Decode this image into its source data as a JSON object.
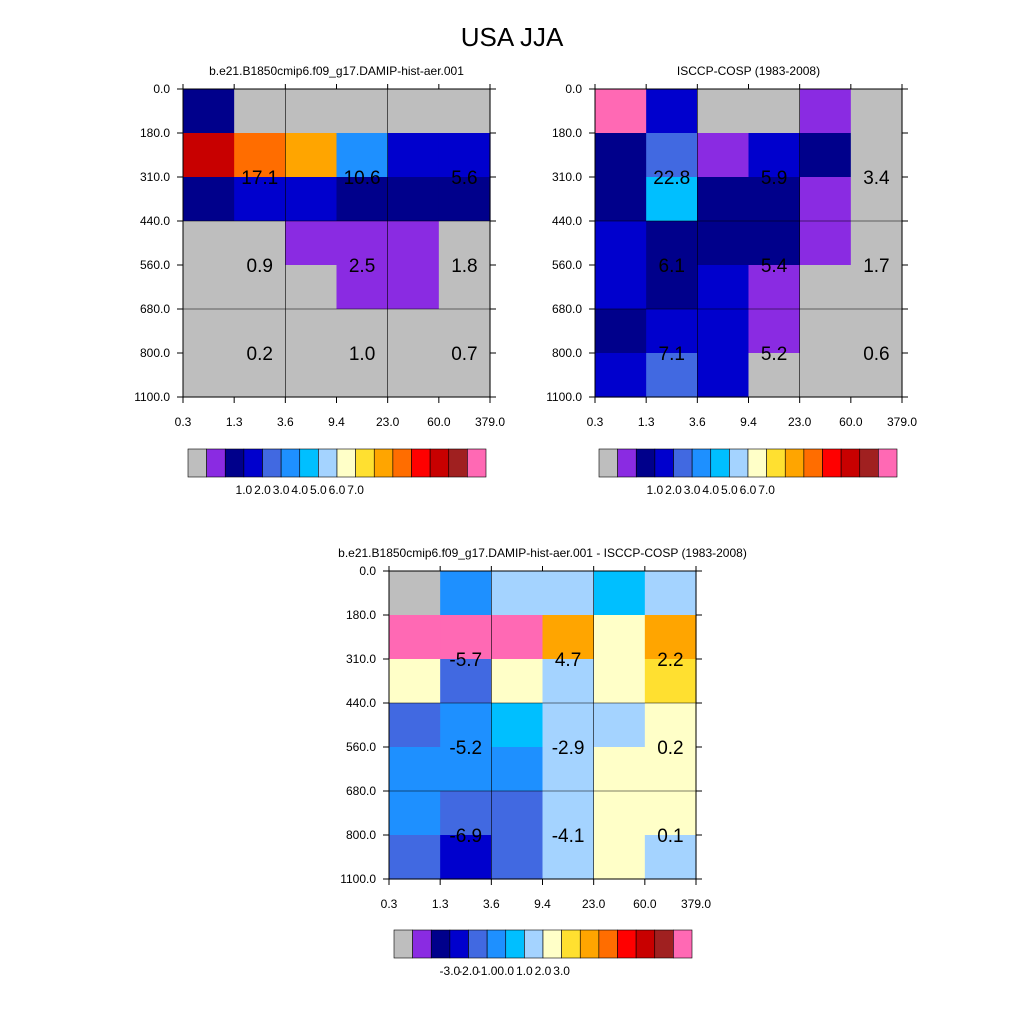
{
  "title": "USA JJA",
  "colors": {
    "missing": "#bebebe",
    "grid_line": "#000000",
    "palette": [
      "#8a2be2",
      "#00008b",
      "#0000cd",
      "#4169e1",
      "#1e90ff",
      "#00bfff",
      "#a4d3ff",
      "#ffffc8",
      "#ffe030",
      "#ffa500",
      "#ff6d00",
      "#ff0000",
      "#c80000",
      "#a02020",
      "#ff69b4"
    ]
  },
  "chart_data": [
    {
      "type": "heatmap",
      "title": "b.e21.B1850cmip6.f09_g17.DAMIP-hist-aer.001",
      "x_tick_labels": [
        "0.3",
        "1.3",
        "3.6",
        "9.4",
        "23.0",
        "60.0",
        "379.0"
      ],
      "y_tick_labels": [
        "0.0",
        "180.0",
        "310.0",
        "440.0",
        "560.0",
        "680.0",
        "800.0",
        "1100.0"
      ],
      "cell_colors": [
        [
          "#00008b",
          "#bebebe",
          "#bebebe",
          "#bebebe",
          "#bebebe",
          "#bebebe"
        ],
        [
          "#c80000",
          "#ff6d00",
          "#ffa500",
          "#1e90ff",
          "#0000cd",
          "#0000cd"
        ],
        [
          "#00008b",
          "#0000cd",
          "#0000cd",
          "#00008b",
          "#00008b",
          "#00008b"
        ],
        [
          "#bebebe",
          "#bebebe",
          "#8a2be2",
          "#8a2be2",
          "#8a2be2",
          "#bebebe"
        ],
        [
          "#bebebe",
          "#bebebe",
          "#bebebe",
          "#8a2be2",
          "#8a2be2",
          "#bebebe"
        ],
        [
          "#bebebe",
          "#bebebe",
          "#bebebe",
          "#bebebe",
          "#bebebe",
          "#bebebe"
        ],
        [
          "#bebebe",
          "#bebebe",
          "#bebebe",
          "#bebebe",
          "#bebebe",
          "#bebebe"
        ]
      ],
      "block_labels": [
        {
          "label": "17.1",
          "col": 1,
          "row": 1.5
        },
        {
          "label": "10.6",
          "col": 3,
          "row": 1.5
        },
        {
          "label": "5.6",
          "col": 5,
          "row": 1.5
        },
        {
          "label": "0.9",
          "col": 1,
          "row": 3.5
        },
        {
          "label": "2.5",
          "col": 3,
          "row": 3.5
        },
        {
          "label": "1.8",
          "col": 5,
          "row": 3.5
        },
        {
          "label": "0.2",
          "col": 1,
          "row": 5.5
        },
        {
          "label": "1.0",
          "col": 3,
          "row": 5.5
        },
        {
          "label": "0.7",
          "col": 5,
          "row": 5.5
        }
      ],
      "colorbar_labels": [
        "1.0",
        "2.0",
        "3.0",
        "4.0",
        "5.0",
        "6.0",
        "7.0"
      ]
    },
    {
      "type": "heatmap",
      "title": "ISCCP-COSP (1983-2008)",
      "x_tick_labels": [
        "0.3",
        "1.3",
        "3.6",
        "9.4",
        "23.0",
        "60.0",
        "379.0"
      ],
      "y_tick_labels": [
        "0.0",
        "180.0",
        "310.0",
        "440.0",
        "560.0",
        "680.0",
        "800.0",
        "1100.0"
      ],
      "cell_colors": [
        [
          "#ff69b4",
          "#0000cd",
          "#bebebe",
          "#bebebe",
          "#8a2be2",
          "#bebebe"
        ],
        [
          "#00008b",
          "#4169e1",
          "#8a2be2",
          "#0000cd",
          "#00008b",
          "#bebebe"
        ],
        [
          "#00008b",
          "#00bfff",
          "#00008b",
          "#00008b",
          "#8a2be2",
          "#bebebe"
        ],
        [
          "#0000cd",
          "#00008b",
          "#00008b",
          "#00008b",
          "#8a2be2",
          "#bebebe"
        ],
        [
          "#0000cd",
          "#00008b",
          "#0000cd",
          "#8a2be2",
          "#bebebe",
          "#bebebe"
        ],
        [
          "#00008b",
          "#0000cd",
          "#0000cd",
          "#8a2be2",
          "#bebebe",
          "#bebebe"
        ],
        [
          "#0000cd",
          "#4169e1",
          "#0000cd",
          "#bebebe",
          "#bebebe",
          "#bebebe"
        ]
      ],
      "block_labels": [
        {
          "label": "22.8",
          "col": 1,
          "row": 1.5
        },
        {
          "label": "5.9",
          "col": 3,
          "row": 1.5
        },
        {
          "label": "3.4",
          "col": 5,
          "row": 1.5
        },
        {
          "label": "6.1",
          "col": 1,
          "row": 3.5
        },
        {
          "label": "5.4",
          "col": 3,
          "row": 3.5
        },
        {
          "label": "1.7",
          "col": 5,
          "row": 3.5
        },
        {
          "label": "7.1",
          "col": 1,
          "row": 5.5
        },
        {
          "label": "5.2",
          "col": 3,
          "row": 5.5
        },
        {
          "label": "0.6",
          "col": 5,
          "row": 5.5
        }
      ],
      "colorbar_labels": [
        "1.0",
        "2.0",
        "3.0",
        "4.0",
        "5.0",
        "6.0",
        "7.0"
      ]
    },
    {
      "type": "heatmap",
      "title": "b.e21.B1850cmip6.f09_g17.DAMIP-hist-aer.001 - ISCCP-COSP (1983-2008)",
      "x_tick_labels": [
        "0.3",
        "1.3",
        "3.6",
        "9.4",
        "23.0",
        "60.0",
        "379.0"
      ],
      "y_tick_labels": [
        "0.0",
        "180.0",
        "310.0",
        "440.0",
        "560.0",
        "680.0",
        "800.0",
        "1100.0"
      ],
      "cell_colors": [
        [
          "#bebebe",
          "#1e90ff",
          "#a4d3ff",
          "#a4d3ff",
          "#00bfff",
          "#a4d3ff"
        ],
        [
          "#ff69b4",
          "#ff69b4",
          "#ff69b4",
          "#ffa500",
          "#ffffc8",
          "#ffa500"
        ],
        [
          "#ffffc8",
          "#4169e1",
          "#ffffc8",
          "#a4d3ff",
          "#ffffc8",
          "#ffe030"
        ],
        [
          "#4169e1",
          "#1e90ff",
          "#00bfff",
          "#a4d3ff",
          "#a4d3ff",
          "#ffffc8"
        ],
        [
          "#1e90ff",
          "#1e90ff",
          "#1e90ff",
          "#a4d3ff",
          "#ffffc8",
          "#ffffc8"
        ],
        [
          "#1e90ff",
          "#4169e1",
          "#4169e1",
          "#a4d3ff",
          "#ffffc8",
          "#ffffc8"
        ],
        [
          "#4169e1",
          "#0000cd",
          "#4169e1",
          "#a4d3ff",
          "#ffffc8",
          "#a4d3ff"
        ]
      ],
      "block_labels": [
        {
          "label": "-5.7",
          "col": 1,
          "row": 1.5
        },
        {
          "label": "4.7",
          "col": 3,
          "row": 1.5
        },
        {
          "label": "2.2",
          "col": 5,
          "row": 1.5
        },
        {
          "label": "-5.2",
          "col": 1,
          "row": 3.5
        },
        {
          "label": "-2.9",
          "col": 3,
          "row": 3.5
        },
        {
          "label": "0.2",
          "col": 5,
          "row": 3.5
        },
        {
          "label": "-6.9",
          "col": 1,
          "row": 5.5
        },
        {
          "label": "-4.1",
          "col": 3,
          "row": 5.5
        },
        {
          "label": "0.1",
          "col": 5,
          "row": 5.5
        }
      ],
      "colorbar_labels": [
        "-3.0",
        "-2.0",
        "-1.0",
        "0.0",
        "1.0",
        "2.0",
        "3.0"
      ]
    }
  ]
}
